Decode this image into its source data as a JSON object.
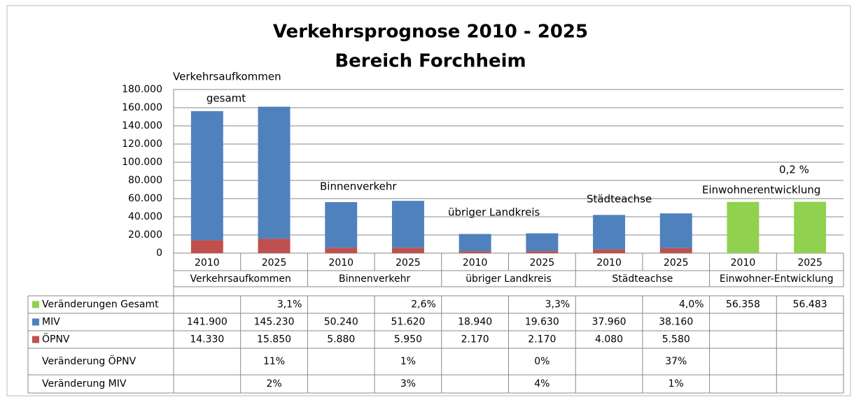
{
  "chart_data": {
    "type": "bar",
    "title": "Verkehrsprognose 2010 - 2025",
    "subtitle": "Bereich Forchheim",
    "categories": [
      "2010",
      "2025",
      "2010",
      "2025",
      "2010",
      "2025",
      "2010",
      "2025",
      "2010",
      "2025"
    ],
    "groups": [
      "Verkehrsaufkommen",
      "Binnenverkehr",
      "übriger Landkreis",
      "Städteachse",
      "Einwohner-Entwicklung"
    ],
    "series": [
      {
        "name": "Veränderungen Gesamt",
        "color": "#92d050",
        "values": [
          null,
          null,
          null,
          null,
          null,
          null,
          null,
          null,
          56358,
          56483
        ],
        "value_labels": [
          null,
          null,
          null,
          null,
          null,
          null,
          null,
          null,
          "56.358",
          "56.483"
        ]
      },
      {
        "name": "MIV",
        "color": "#4f81bd",
        "values": [
          141900,
          145230,
          50240,
          51620,
          18940,
          19630,
          37960,
          38160,
          null,
          null
        ],
        "value_labels": [
          "141.900",
          "145.230",
          "50.240",
          "51.620",
          "18.940",
          "19.630",
          "37.960",
          "38.160",
          null,
          null
        ]
      },
      {
        "name": "ÖPNV",
        "color": "#c0504d",
        "values": [
          14330,
          15850,
          5880,
          5950,
          2170,
          2170,
          4080,
          5580,
          null,
          null
        ],
        "value_labels": [
          "14.330",
          "15.850",
          "5.880",
          "5.950",
          "2.170",
          "2.170",
          "4.080",
          "5.580",
          null,
          null
        ]
      }
    ],
    "change_total": [
      null,
      "3,1%",
      null,
      "2,6%",
      null,
      "3,3%",
      null,
      "4,0%",
      null,
      null
    ],
    "extra_rows": [
      {
        "label": "Veränderung ÖPNV",
        "values": [
          null,
          "11%",
          null,
          "1%",
          null,
          "0%",
          null,
          "37%",
          null,
          null
        ]
      },
      {
        "label": "Veränderung MIV",
        "values": [
          null,
          "2%",
          null,
          "3%",
          null,
          "4%",
          null,
          "1%",
          null,
          null
        ]
      }
    ],
    "annotations": [
      "Verkehrsaufkommen",
      "gesamt",
      "Binnenverkehr",
      "übriger Landkreis",
      "Städteachse",
      "Einwohnerentwicklung",
      "0,2 %"
    ],
    "ylim": [
      0,
      180000
    ],
    "yticks": [
      0,
      {
        "value": 20000,
        "label": "20.000"
      },
      {
        "value": 40000,
        "label": "40.000"
      },
      {
        "value": 60000,
        "label": "60.000"
      },
      {
        "value": 80000,
        "label": "80.000"
      },
      {
        "value": 100000,
        "label": "100.000"
      },
      {
        "value": 120000,
        "label": "120.000"
      },
      {
        "value": 140000,
        "label": "140.000"
      },
      {
        "value": 160000,
        "label": "160.000"
      },
      {
        "value": 180000,
        "label": "180.000"
      }
    ],
    "grid": true
  }
}
